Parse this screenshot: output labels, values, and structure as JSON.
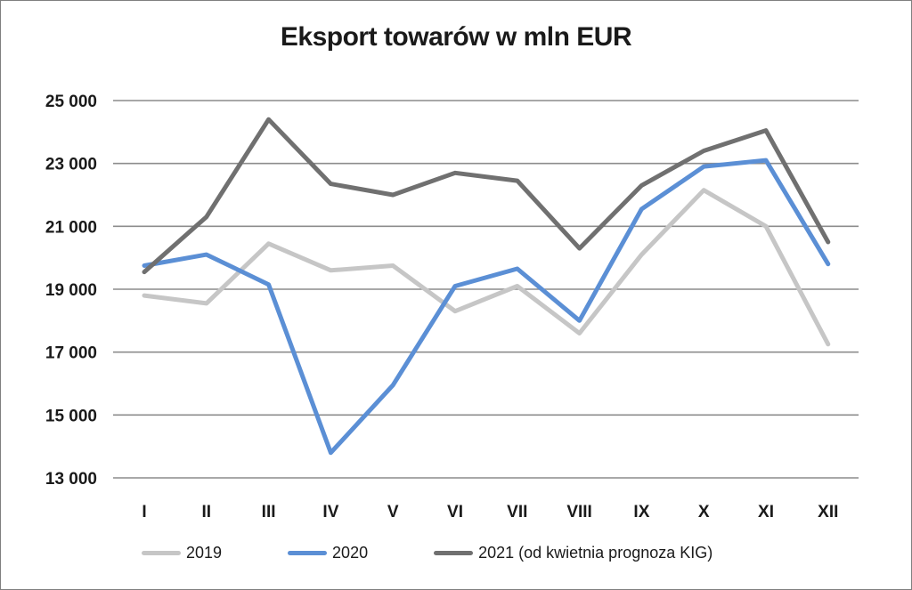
{
  "chart_data": {
    "type": "line",
    "title": "Eksport towarów w mln EUR",
    "categories": [
      "I",
      "II",
      "III",
      "IV",
      "V",
      "VI",
      "VII",
      "VIII",
      "IX",
      "X",
      "XI",
      "XII"
    ],
    "y_axis": {
      "min": 13000,
      "max": 25000,
      "step": 2000,
      "tick_labels": [
        "13 000",
        "15 000",
        "17 000",
        "19 000",
        "21 000",
        "23 000",
        "25 000"
      ]
    },
    "grid": true,
    "legend_position": "bottom",
    "series": [
      {
        "name": "2019",
        "color": "#c6c6c6",
        "values": [
          18800,
          18550,
          20450,
          19600,
          19750,
          18300,
          19100,
          17600,
          20100,
          22150,
          21000,
          17250
        ]
      },
      {
        "name": "2020",
        "color": "#5b8fd5",
        "values": [
          19750,
          20100,
          19150,
          13800,
          15950,
          19100,
          19650,
          18000,
          21550,
          22900,
          23100,
          19800
        ]
      },
      {
        "name": "2021 (od kwietnia prognoza KIG)",
        "color": "#707070",
        "values": [
          19550,
          21300,
          24400,
          22350,
          22000,
          22700,
          22450,
          20300,
          22300,
          23400,
          24050,
          20500
        ]
      }
    ]
  }
}
